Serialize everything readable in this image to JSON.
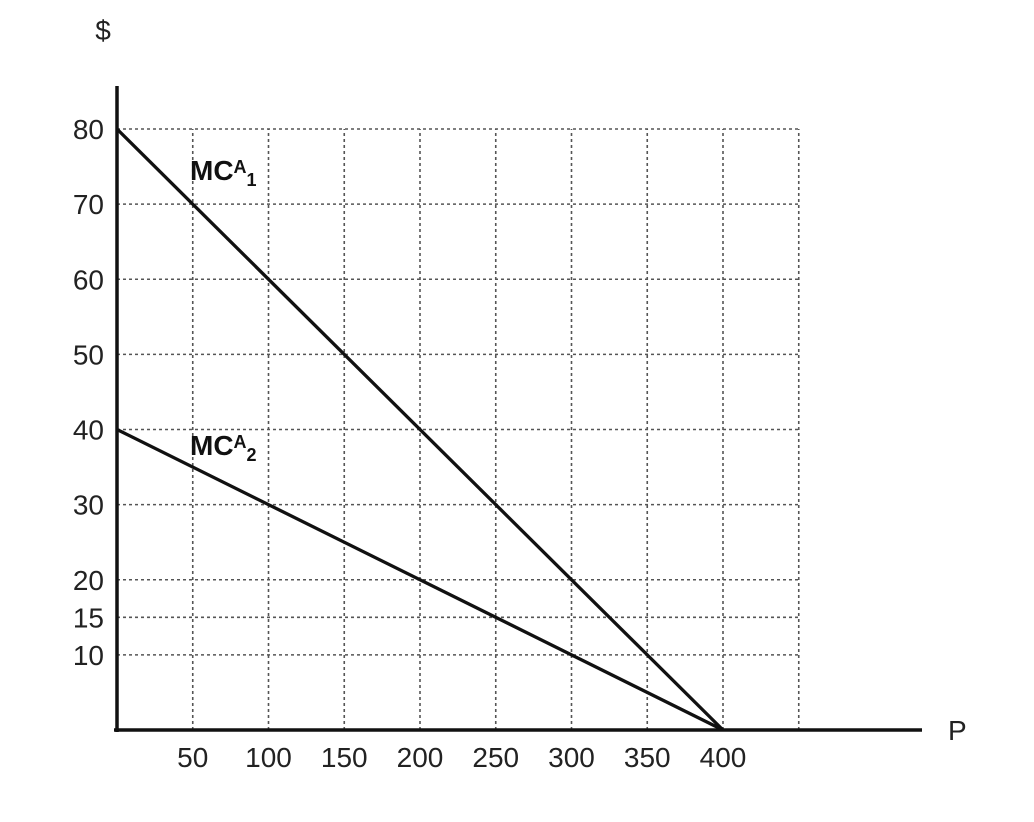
{
  "chart_data": {
    "type": "line",
    "title": "",
    "ylabel": "$",
    "xlabel": "P",
    "xlim": [
      0,
      450
    ],
    "ylim": [
      0,
      80
    ],
    "x_ticks": [
      50,
      100,
      150,
      200,
      250,
      300,
      350,
      400
    ],
    "y_ticks": [
      10,
      15,
      20,
      30,
      40,
      50,
      60,
      70,
      80
    ],
    "grid": true,
    "grid_x": [
      50,
      100,
      150,
      200,
      250,
      300,
      350,
      400,
      450
    ],
    "grid_y": [
      10,
      15,
      20,
      30,
      40,
      50,
      60,
      70,
      80
    ],
    "legend": "none",
    "series": [
      {
        "name": "MCA1",
        "label": {
          "base": "MC",
          "sup": "A",
          "sub": "1"
        },
        "x": [
          0,
          400
        ],
        "y": [
          80,
          0
        ]
      },
      {
        "name": "MCA2",
        "label": {
          "base": "MC",
          "sup": "A",
          "sub": "2"
        },
        "x": [
          0,
          400
        ],
        "y": [
          40,
          0
        ]
      }
    ],
    "colors": {
      "line": "#111111",
      "axis": "#111111",
      "grid": "#555555",
      "text": "#222222"
    }
  }
}
